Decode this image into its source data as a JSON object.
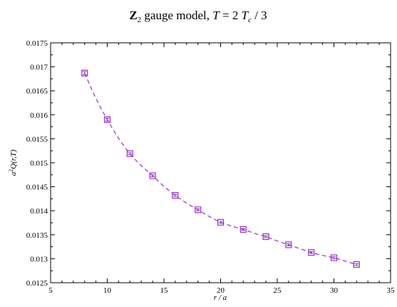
{
  "chart_data": {
    "type": "scatter",
    "title": {
      "bold": "Z",
      "bold_sub": "2",
      "text": " gauge model, ",
      "T": "T",
      "eq": " = 2 ",
      "Tc": "T",
      "Tc_sub": "c",
      "tail": " / 3"
    },
    "xlabel": "r / a",
    "ylabel": "a²Q(r,T)",
    "ylabel_parts": {
      "a": "a",
      "sup": "2",
      "rest": "Q(r,T)"
    },
    "xlim": [
      5,
      35
    ],
    "ylim": [
      0.0125,
      0.0175
    ],
    "x_ticks": [
      5,
      10,
      15,
      20,
      25,
      30,
      35
    ],
    "x_tick_labels": [
      "5",
      "10",
      "15",
      "20",
      "25",
      "30",
      "35"
    ],
    "y_ticks": [
      0.0125,
      0.013,
      0.0135,
      0.014,
      0.0145,
      0.015,
      0.0155,
      0.016,
      0.0165,
      0.017,
      0.0175
    ],
    "y_tick_labels": [
      "0.0125",
      "0.013",
      "0.0135",
      "0.014",
      "0.0145",
      "0.015",
      "0.0155",
      "0.016",
      "0.0165",
      "0.017",
      "0.0175"
    ],
    "grid": false,
    "series": [
      {
        "marker": "square",
        "color": "#9933cc",
        "x": [
          8,
          10,
          12,
          14,
          16,
          18,
          20,
          22,
          24,
          26,
          28,
          30,
          32
        ],
        "y": [
          0.01687,
          0.0159,
          0.01519,
          0.01473,
          0.01432,
          0.01402,
          0.01376,
          0.01361,
          0.01346,
          0.01329,
          0.01313,
          0.01302,
          0.01288
        ],
        "err": [
          3e-05,
          3e-05,
          2e-05,
          2e-05,
          2e-05,
          2e-05,
          2e-05,
          2e-05,
          2e-05,
          2e-05,
          2e-05,
          2e-05,
          2e-05
        ]
      }
    ],
    "fit_curve": {
      "style": "dashed",
      "color": "#9933cc",
      "x": [
        8,
        9,
        10,
        11,
        12,
        13,
        14,
        15,
        16,
        17,
        18,
        19,
        20,
        21,
        22,
        23,
        24,
        25,
        26,
        27,
        28,
        29,
        30,
        31,
        32
      ],
      "y": [
        0.01687,
        0.01634,
        0.0159,
        0.01551,
        0.01519,
        0.01494,
        0.01473,
        0.01451,
        0.01432,
        0.01416,
        0.01402,
        0.01388,
        0.01376,
        0.01368,
        0.01361,
        0.01353,
        0.01346,
        0.01337,
        0.01329,
        0.01321,
        0.01313,
        0.01307,
        0.01302,
        0.01295,
        0.01288
      ]
    }
  }
}
